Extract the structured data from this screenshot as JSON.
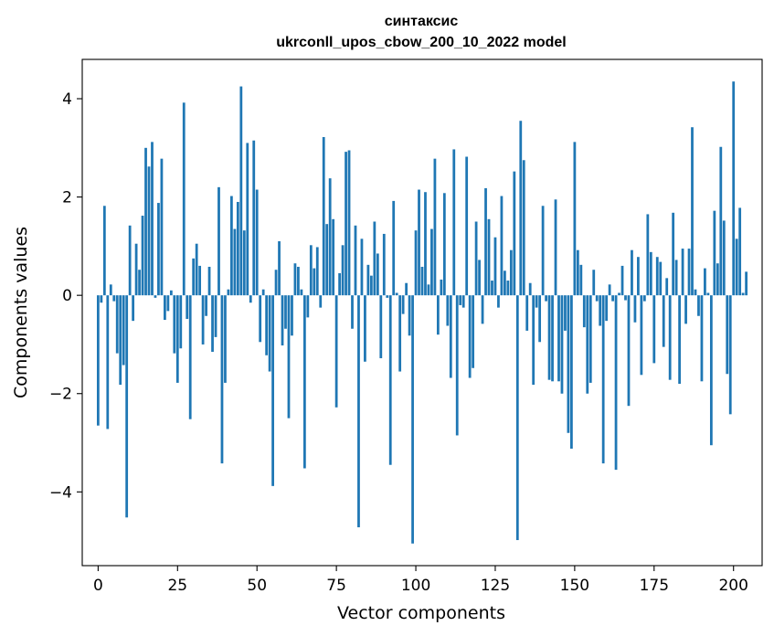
{
  "chart_data": {
    "type": "bar",
    "title_line1": "синтаксис",
    "title_line2": "ukrconll_upos_cbow_200_10_2022 model",
    "xlabel": "Vector components",
    "ylabel": "Components values",
    "xlim": [
      -5,
      209
    ],
    "ylim": [
      -5.5,
      4.8
    ],
    "xticks": [
      0,
      25,
      50,
      75,
      100,
      125,
      150,
      175,
      200
    ],
    "yticks": [
      -4,
      -2,
      0,
      2,
      4
    ],
    "ytick_labels": [
      "−4",
      "−2",
      "0",
      "2",
      "4"
    ],
    "grid": false,
    "bar_color": "#1f77b4",
    "values": [
      -2.65,
      -0.15,
      1.82,
      -2.72,
      0.22,
      -0.12,
      -1.18,
      -1.82,
      -1.42,
      -4.52,
      1.42,
      -0.52,
      1.05,
      0.52,
      1.62,
      3.0,
      2.62,
      3.12,
      -0.05,
      1.88,
      2.78,
      -0.5,
      -0.32,
      0.1,
      -1.18,
      -1.78,
      -1.08,
      3.92,
      -0.48,
      -2.52,
      0.75,
      1.05,
      0.6,
      -1.0,
      -0.42,
      0.58,
      -1.15,
      -0.85,
      2.2,
      -3.42,
      -1.78,
      0.12,
      2.02,
      1.35,
      1.9,
      4.25,
      1.32,
      3.1,
      -0.15,
      3.15,
      2.15,
      -0.95,
      0.12,
      -1.22,
      -1.55,
      -3.88,
      0.52,
      1.1,
      -1.02,
      -0.68,
      -2.5,
      -0.82,
      0.65,
      0.58,
      0.12,
      -3.52,
      -0.45,
      1.02,
      0.55,
      0.98,
      -0.25,
      3.22,
      1.45,
      2.38,
      1.55,
      -2.28,
      0.45,
      1.02,
      2.92,
      2.95,
      -0.68,
      1.42,
      -4.72,
      1.15,
      -1.35,
      0.62,
      0.4,
      1.5,
      0.85,
      -1.28,
      1.25,
      -0.05,
      -3.45,
      1.92,
      0.05,
      -1.55,
      -0.38,
      0.25,
      -0.82,
      -5.05,
      1.32,
      2.15,
      0.58,
      2.1,
      0.22,
      1.35,
      2.78,
      -0.8,
      0.32,
      2.08,
      -0.62,
      -1.68,
      2.97,
      -2.85,
      -0.2,
      -0.25,
      2.82,
      -1.68,
      -1.48,
      1.5,
      0.72,
      -0.58,
      2.18,
      1.55,
      0.3,
      1.18,
      -0.25,
      2.02,
      0.5,
      0.3,
      0.92,
      2.52,
      -4.98,
      3.55,
      2.75,
      -0.72,
      0.25,
      -1.82,
      -0.25,
      -0.95,
      1.82,
      -0.12,
      -1.72,
      -1.75,
      1.95,
      -1.75,
      -2.0,
      -0.72,
      -2.8,
      -3.12,
      3.12,
      0.92,
      0.62,
      -0.65,
      -2.0,
      -1.78,
      0.52,
      -0.12,
      -0.62,
      -3.42,
      -0.52,
      0.22,
      -0.12,
      -3.55,
      0.05,
      0.6,
      -0.1,
      -2.25,
      0.92,
      -0.55,
      0.78,
      -1.62,
      -0.12,
      1.65,
      0.88,
      -1.38,
      0.78,
      0.68,
      -1.05,
      0.35,
      -1.72,
      1.68,
      0.72,
      -1.8,
      0.95,
      -0.58,
      0.95,
      3.42,
      0.12,
      -0.42,
      -1.75,
      0.55,
      0.05,
      -3.05,
      1.72,
      0.65,
      3.02,
      1.52,
      -1.6,
      -2.42,
      4.35,
      1.15,
      1.78,
      0.05,
      0.48
    ]
  }
}
